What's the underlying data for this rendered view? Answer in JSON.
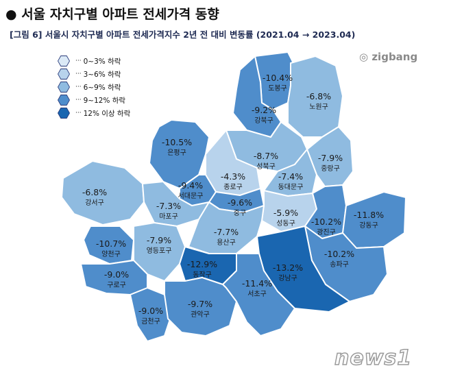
{
  "title": "● 서울 자치구별 아파트 전세가격 동향",
  "subtitle": "[그림 6] 서울시 자치구별 아파트 전세가격지수 2년 전 대비 변동률 (2021.04 → 2023.04)",
  "brand": "zigbang",
  "watermark": "news1",
  "legend": [
    {
      "label": "0~3% 하락",
      "color": "#dbe9f6"
    },
    {
      "label": "3~6% 하락",
      "color": "#b8d3ec"
    },
    {
      "label": "6~9% 하락",
      "color": "#8fbbe0"
    },
    {
      "label": "9~12% 하락",
      "color": "#4f8dcb"
    },
    {
      "label": "12% 이상 하락",
      "color": "#1a66b0"
    }
  ],
  "districts": [
    {
      "name": "도봉구",
      "value": "-10.4%"
    },
    {
      "name": "노원구",
      "value": "-6.8%"
    },
    {
      "name": "강북구",
      "value": "-9.2%"
    },
    {
      "name": "은평구",
      "value": "-10.5%"
    },
    {
      "name": "성북구",
      "value": "-8.7%"
    },
    {
      "name": "중랑구",
      "value": "-7.9%"
    },
    {
      "name": "종로구",
      "value": "-4.3%"
    },
    {
      "name": "동대문구",
      "value": "-7.4%"
    },
    {
      "name": "서대문구",
      "value": "-9.4%"
    },
    {
      "name": "강서구",
      "value": "-6.8%"
    },
    {
      "name": "마포구",
      "value": "-7.3%"
    },
    {
      "name": "중구",
      "value": "-9.6%"
    },
    {
      "name": "성동구",
      "value": "-5.9%"
    },
    {
      "name": "광진구",
      "value": "-10.2%"
    },
    {
      "name": "강동구",
      "value": "-11.8%"
    },
    {
      "name": "양천구",
      "value": "-10.7%"
    },
    {
      "name": "영등포구",
      "value": "-7.9%"
    },
    {
      "name": "용산구",
      "value": "-7.7%"
    },
    {
      "name": "송파구",
      "value": "-10.2%"
    },
    {
      "name": "강남구",
      "value": "-13.2%"
    },
    {
      "name": "구로구",
      "value": "-9.0%"
    },
    {
      "name": "동작구",
      "value": "-12.9%"
    },
    {
      "name": "서초구",
      "value": "-11.4%"
    },
    {
      "name": "금천구",
      "value": "-9.0%"
    },
    {
      "name": "관악구",
      "value": "-9.7%"
    }
  ]
}
